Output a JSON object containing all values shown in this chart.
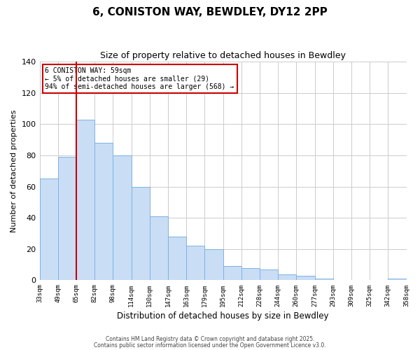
{
  "title": "6, CONISTON WAY, BEWDLEY, DY12 2PP",
  "subtitle": "Size of property relative to detached houses in Bewdley",
  "xlabel": "Distribution of detached houses by size in Bewdley",
  "ylabel": "Number of detached properties",
  "bin_labels": [
    "33sqm",
    "49sqm",
    "65sqm",
    "82sqm",
    "98sqm",
    "114sqm",
    "130sqm",
    "147sqm",
    "163sqm",
    "179sqm",
    "195sqm",
    "212sqm",
    "228sqm",
    "244sqm",
    "260sqm",
    "277sqm",
    "293sqm",
    "309sqm",
    "325sqm",
    "342sqm",
    "358sqm"
  ],
  "bar_values": [
    65,
    79,
    103,
    88,
    80,
    60,
    41,
    28,
    22,
    20,
    9,
    8,
    7,
    4,
    3,
    1,
    0,
    0,
    0,
    1
  ],
  "bar_color": "#c9ddf5",
  "bar_edge_color": "#7eb3e0",
  "vline_color": "#cc0000",
  "ylim": [
    0,
    140
  ],
  "yticks": [
    0,
    20,
    40,
    60,
    80,
    100,
    120,
    140
  ],
  "annotation_title": "6 CONISTON WAY: 59sqm",
  "annotation_line1": "← 5% of detached houses are smaller (29)",
  "annotation_line2": "94% of semi-detached houses are larger (568) →",
  "annotation_box_color": "#ffffff",
  "annotation_border_color": "#cc0000",
  "footer1": "Contains HM Land Registry data © Crown copyright and database right 2025.",
  "footer2": "Contains public sector information licensed under the Open Government Licence v3.0.",
  "background_color": "#ffffff",
  "grid_color": "#cccccc"
}
